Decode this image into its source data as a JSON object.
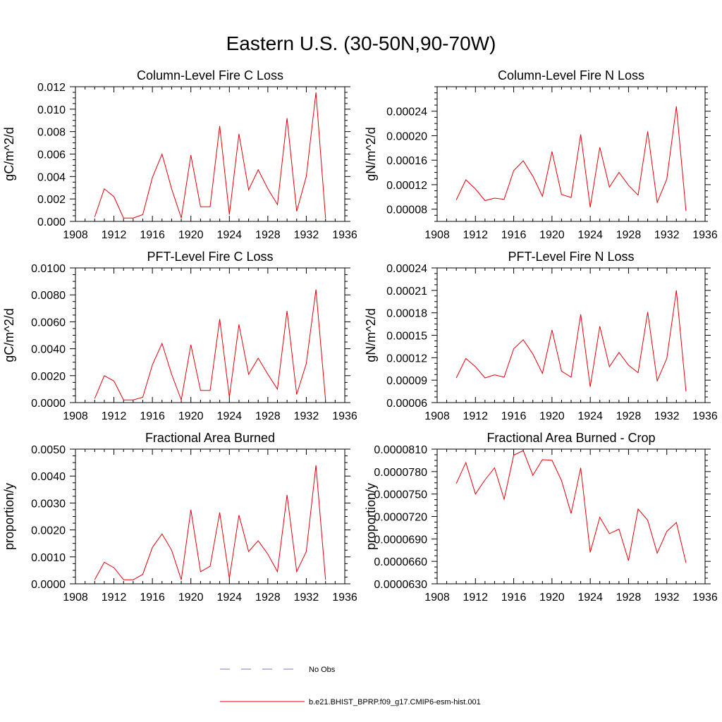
{
  "title": "Eastern U.S. (30-50N,90-70W)",
  "legend": {
    "obs_label": "No Obs",
    "obs_color": "#7a7ab8",
    "model_label": "b.e21.BHIST_BPRP.f09_g17.CMIP6-esm-hist.001",
    "model_color": "#e8000b"
  },
  "chart_data": [
    {
      "type": "line",
      "title": "Column-Level Fire C Loss",
      "ylabel": "gC/m^2/d",
      "xlim": [
        1908,
        1936
      ],
      "ylim": [
        0,
        0.012
      ],
      "xticks": [
        "1908",
        "1912",
        "1916",
        "1920",
        "1924",
        "1928",
        "1932",
        "1936"
      ],
      "yticks": [
        "0.000",
        "0.002",
        "0.004",
        "0.006",
        "0.008",
        "0.010",
        "0.012"
      ],
      "x": [
        1910,
        1911,
        1912,
        1913,
        1914,
        1915,
        1916,
        1917,
        1918,
        1919,
        1920,
        1921,
        1922,
        1923,
        1924,
        1925,
        1926,
        1927,
        1928,
        1929,
        1930,
        1931,
        1932,
        1933,
        1934
      ],
      "series": [
        {
          "values": [
            0.0004,
            0.0029,
            0.0022,
            0.0003,
            0.0003,
            0.0006,
            0.0039,
            0.006,
            0.0029,
            0.0003,
            0.0059,
            0.0013,
            0.0013,
            0.0085,
            0.0006,
            0.0078,
            0.0028,
            0.0046,
            0.0029,
            0.0015,
            0.0092,
            0.0009,
            0.004,
            0.0115,
            0.0003
          ]
        }
      ]
    },
    {
      "type": "line",
      "title": "Column-Level Fire N Loss",
      "ylabel": "gN/m^2/d",
      "xlim": [
        1908,
        1936
      ],
      "ylim": [
        6e-05,
        0.00028
      ],
      "xticks": [
        "1908",
        "1912",
        "1916",
        "1920",
        "1924",
        "1928",
        "1932",
        "1936"
      ],
      "yticks": [
        "0.00008",
        "0.00012",
        "0.00016",
        "0.00020",
        "0.00024"
      ],
      "ytickvals": [
        8e-05,
        0.00012,
        0.00016,
        0.0002,
        0.00024
      ],
      "x": [
        1910,
        1911,
        1912,
        1913,
        1914,
        1915,
        1916,
        1917,
        1918,
        1919,
        1920,
        1921,
        1922,
        1923,
        1924,
        1925,
        1926,
        1927,
        1928,
        1929,
        1930,
        1931,
        1932,
        1933,
        1934
      ],
      "series": [
        {
          "values": [
            9.5e-05,
            0.000128,
            0.000113,
            9.4e-05,
            9.8e-05,
            9.6e-05,
            0.000143,
            0.000159,
            0.000134,
            0.000101,
            0.000174,
            0.000104,
            9.9e-05,
            0.000202,
            8.3e-05,
            0.000181,
            0.000116,
            0.00014,
            0.000119,
            0.000103,
            0.000207,
            9.1e-05,
            0.000129,
            0.000248,
            7.7e-05
          ]
        }
      ]
    },
    {
      "type": "line",
      "title": "PFT-Level Fire C Loss",
      "ylabel": "gC/m^2/d",
      "xlim": [
        1908,
        1936
      ],
      "ylim": [
        0,
        0.01
      ],
      "xticks": [
        "1908",
        "1912",
        "1916",
        "1920",
        "1924",
        "1928",
        "1932",
        "1936"
      ],
      "yticks": [
        "0.0000",
        "0.0020",
        "0.0040",
        "0.0060",
        "0.0080",
        "0.0100"
      ],
      "x": [
        1910,
        1911,
        1912,
        1913,
        1914,
        1915,
        1916,
        1917,
        1918,
        1919,
        1920,
        1921,
        1922,
        1923,
        1924,
        1925,
        1926,
        1927,
        1928,
        1929,
        1930,
        1931,
        1932,
        1933,
        1934
      ],
      "series": [
        {
          "values": [
            0.0003,
            0.002,
            0.0016,
            0.0002,
            0.0002,
            0.0004,
            0.0028,
            0.0044,
            0.0021,
            0.0002,
            0.0043,
            0.0009,
            0.0009,
            0.0062,
            0.0004,
            0.0058,
            0.0021,
            0.0033,
            0.0021,
            0.001,
            0.0068,
            0.0006,
            0.0029,
            0.0084,
            0.0002
          ]
        }
      ]
    },
    {
      "type": "line",
      "title": "PFT-Level Fire N Loss",
      "ylabel": "gN/m^2/d",
      "xlim": [
        1908,
        1936
      ],
      "ylim": [
        6e-05,
        0.00024
      ],
      "xticks": [
        "1908",
        "1912",
        "1916",
        "1920",
        "1924",
        "1928",
        "1932",
        "1936"
      ],
      "yticks": [
        "0.00006",
        "0.00009",
        "0.00012",
        "0.00015",
        "0.00018",
        "0.00021",
        "0.00024"
      ],
      "ytickvals": [
        6e-05,
        9e-05,
        0.00012,
        0.00015,
        0.00018,
        0.00021,
        0.00024
      ],
      "x": [
        1910,
        1911,
        1912,
        1913,
        1914,
        1915,
        1916,
        1917,
        1918,
        1919,
        1920,
        1921,
        1922,
        1923,
        1924,
        1925,
        1926,
        1927,
        1928,
        1929,
        1930,
        1931,
        1932,
        1933,
        1934
      ],
      "series": [
        {
          "values": [
            9.3e-05,
            0.000119,
            0.000108,
            9.3e-05,
            9.7e-05,
            9.4e-05,
            0.000132,
            0.000144,
            0.000125,
            9.9e-05,
            0.000157,
            0.000102,
            9.4e-05,
            0.000178,
            8.1e-05,
            0.000162,
            0.000108,
            0.000127,
            0.00011,
            0.0001,
            0.000181,
            8.9e-05,
            0.000119,
            0.00021,
            7.5e-05
          ]
        }
      ]
    },
    {
      "type": "line",
      "title": "Fractional Area Burned",
      "ylabel": "proportion/y",
      "xlim": [
        1908,
        1936
      ],
      "ylim": [
        0,
        0.005
      ],
      "xticks": [
        "1908",
        "1912",
        "1916",
        "1920",
        "1924",
        "1928",
        "1932",
        "1936"
      ],
      "yticks": [
        "0.0000",
        "0.0010",
        "0.0020",
        "0.0030",
        "0.0040",
        "0.0050"
      ],
      "x": [
        1910,
        1911,
        1912,
        1913,
        1914,
        1915,
        1916,
        1917,
        1918,
        1919,
        1920,
        1921,
        1922,
        1923,
        1924,
        1925,
        1926,
        1927,
        1928,
        1929,
        1930,
        1931,
        1932,
        1933,
        1934
      ],
      "series": [
        {
          "values": [
            0.00015,
            0.0008,
            0.0006,
            0.00015,
            0.00015,
            0.00035,
            0.00135,
            0.00185,
            0.00125,
            0.00015,
            0.00275,
            0.00045,
            0.00065,
            0.00265,
            0.0002,
            0.00255,
            0.0012,
            0.0016,
            0.0011,
            0.00045,
            0.0033,
            0.00045,
            0.0012,
            0.0044,
            0.00015
          ]
        }
      ]
    },
    {
      "type": "line",
      "title": "Fractional Area Burned - Crop",
      "ylabel": "proportion/y",
      "xlim": [
        1908,
        1936
      ],
      "ylim": [
        6.3e-05,
        8.1e-05
      ],
      "xticks": [
        "1908",
        "1912",
        "1916",
        "1920",
        "1924",
        "1928",
        "1932",
        "1936"
      ],
      "yticks": [
        "0.0000630",
        "0.0000660",
        "0.0000690",
        "0.0000720",
        "0.0000750",
        "0.0000780",
        "0.0000810"
      ],
      "x": [
        1910,
        1911,
        1912,
        1913,
        1914,
        1915,
        1916,
        1917,
        1918,
        1919,
        1920,
        1921,
        1922,
        1923,
        1924,
        1925,
        1926,
        1927,
        1928,
        1929,
        1930,
        1931,
        1932,
        1933,
        1934
      ],
      "series": [
        {
          "values": [
            7.64e-05,
            7.92e-05,
            7.5e-05,
            7.69e-05,
            7.85e-05,
            7.43e-05,
            8.02e-05,
            8.08e-05,
            7.75e-05,
            7.96e-05,
            7.95e-05,
            7.68e-05,
            7.24e-05,
            7.85e-05,
            6.72e-05,
            7.19e-05,
            6.97e-05,
            7.03e-05,
            6.61e-05,
            7.3e-05,
            7.15e-05,
            6.71e-05,
            7e-05,
            7.12e-05,
            6.58e-05
          ]
        }
      ]
    }
  ]
}
